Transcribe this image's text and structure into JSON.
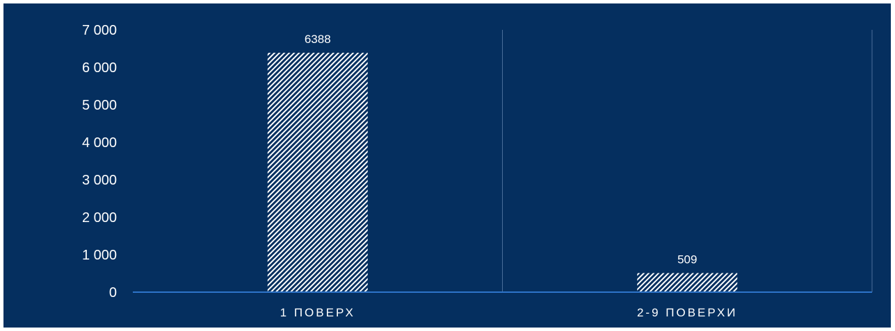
{
  "chart_data": {
    "type": "bar",
    "categories": [
      "1 ПОВЕРХ",
      "2-9 ПОВЕРХИ"
    ],
    "values": [
      6388,
      509
    ],
    "data_labels": [
      "6388",
      "509"
    ],
    "title": "",
    "xlabel": "",
    "ylabel": "",
    "ylim": [
      0,
      7000
    ],
    "y_ticks": [
      0,
      1000,
      2000,
      3000,
      4000,
      5000,
      6000,
      7000
    ],
    "y_tick_labels": [
      "0",
      "1 000",
      "2 000",
      "3 000",
      "4 000",
      "5 000",
      "6 000",
      "7 000"
    ],
    "grid": false,
    "legend": "none",
    "bar_fill": "hatched",
    "colors": {
      "background": "#052f5f",
      "text": "#ffffff",
      "bar_pattern_light": "#ffffff",
      "bar_pattern_dark": "#052f5f",
      "axis": "#2e74c9",
      "separator": "#4a6d99"
    }
  }
}
